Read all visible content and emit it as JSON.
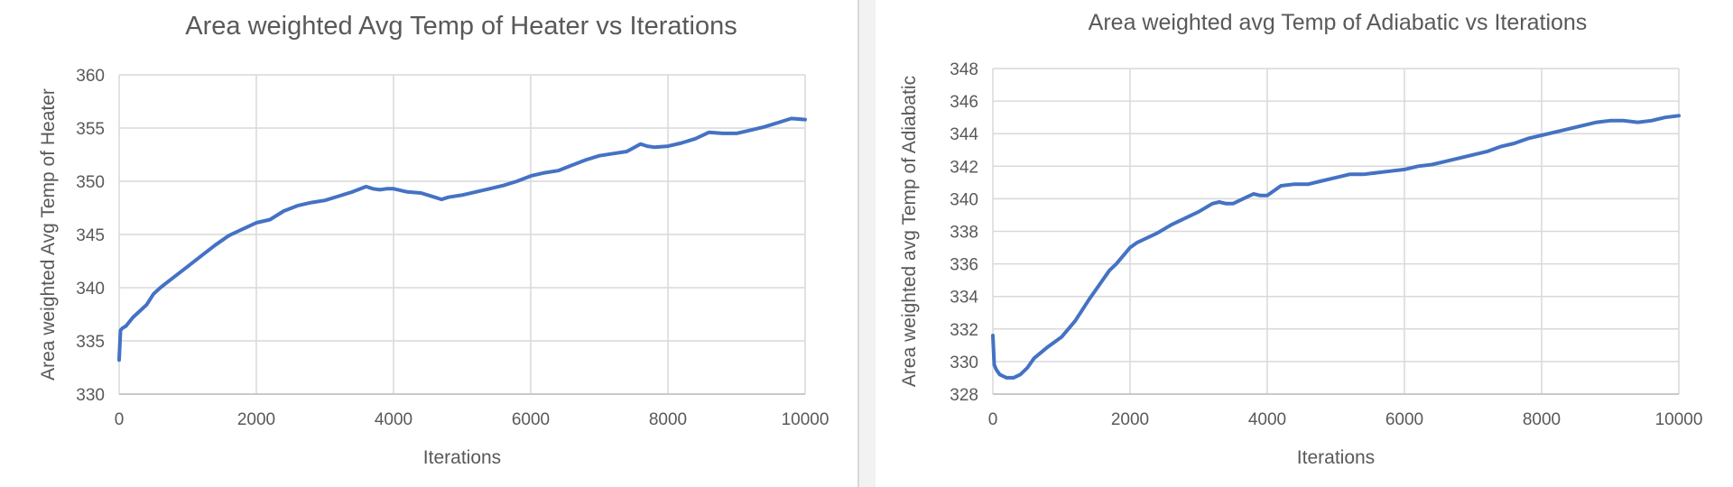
{
  "chart_data": [
    {
      "type": "line",
      "title": "Area weighted Avg Temp of Heater vs Iterations",
      "xlabel": "Iterations",
      "ylabel": "Area weighted Avg Temp of Heater",
      "xlim": [
        0,
        10000
      ],
      "ylim": [
        330,
        360
      ],
      "xticks": [
        0,
        2000,
        4000,
        6000,
        8000,
        10000
      ],
      "yticks": [
        330,
        335,
        340,
        345,
        350,
        355,
        360
      ],
      "grid": true,
      "legend": "none",
      "color": "#4472c4",
      "x": [
        0,
        20,
        50,
        100,
        200,
        300,
        400,
        500,
        600,
        700,
        800,
        900,
        1000,
        1200,
        1400,
        1600,
        1800,
        2000,
        2200,
        2400,
        2600,
        2800,
        3000,
        3200,
        3400,
        3600,
        3700,
        3800,
        3900,
        4000,
        4200,
        4400,
        4600,
        4700,
        4800,
        5000,
        5200,
        5400,
        5600,
        5800,
        6000,
        6200,
        6400,
        6600,
        6800,
        7000,
        7200,
        7400,
        7600,
        7700,
        7800,
        8000,
        8200,
        8400,
        8600,
        8800,
        9000,
        9200,
        9400,
        9600,
        9800,
        10000
      ],
      "y": [
        333.2,
        336.0,
        336.2,
        336.4,
        337.2,
        337.8,
        338.4,
        339.4,
        340.0,
        340.5,
        341.0,
        341.5,
        342.0,
        343.0,
        344.0,
        344.9,
        345.5,
        346.1,
        346.4,
        347.2,
        347.7,
        348.0,
        348.2,
        348.6,
        349.0,
        349.5,
        349.3,
        349.2,
        349.3,
        349.3,
        349.0,
        348.9,
        348.5,
        348.3,
        348.5,
        348.7,
        349.0,
        349.3,
        349.6,
        350.0,
        350.5,
        350.8,
        351.0,
        351.5,
        352.0,
        352.4,
        352.6,
        352.8,
        353.5,
        353.3,
        353.2,
        353.3,
        353.6,
        354.0,
        354.6,
        354.5,
        354.5,
        354.8,
        355.1,
        355.5,
        355.9,
        355.8
      ]
    },
    {
      "type": "line",
      "title": "Area weighted avg Temp of Adiabatic vs Iterations",
      "xlabel": "Iterations",
      "ylabel": "Area weighted avg Temp of Adiabatic",
      "xlim": [
        0,
        10000
      ],
      "ylim": [
        328,
        348
      ],
      "xticks": [
        0,
        2000,
        4000,
        6000,
        8000,
        10000
      ],
      "yticks": [
        328,
        330,
        332,
        334,
        336,
        338,
        340,
        342,
        344,
        346,
        348
      ],
      "grid": true,
      "legend": "none",
      "color": "#4472c4",
      "x": [
        0,
        20,
        50,
        100,
        200,
        300,
        400,
        500,
        600,
        800,
        1000,
        1200,
        1400,
        1600,
        1700,
        1800,
        1900,
        2000,
        2100,
        2200,
        2400,
        2600,
        2800,
        3000,
        3200,
        3300,
        3400,
        3500,
        3700,
        3800,
        3900,
        4000,
        4200,
        4400,
        4600,
        4800,
        5000,
        5200,
        5400,
        5600,
        5800,
        6000,
        6200,
        6400,
        6600,
        6800,
        7000,
        7200,
        7400,
        7600,
        7800,
        8000,
        8200,
        8400,
        8600,
        8800,
        9000,
        9200,
        9400,
        9600,
        9800,
        10000
      ],
      "y": [
        331.6,
        329.8,
        329.5,
        329.2,
        329.0,
        329.0,
        329.2,
        329.6,
        330.2,
        330.9,
        331.5,
        332.5,
        333.8,
        335.0,
        335.6,
        336.0,
        336.5,
        337.0,
        337.3,
        337.5,
        337.9,
        338.4,
        338.8,
        339.2,
        339.7,
        339.8,
        339.7,
        339.7,
        340.1,
        340.3,
        340.2,
        340.2,
        340.8,
        340.9,
        340.9,
        341.1,
        341.3,
        341.5,
        341.5,
        341.6,
        341.7,
        341.8,
        342.0,
        342.1,
        342.3,
        342.5,
        342.7,
        342.9,
        343.2,
        343.4,
        343.7,
        343.9,
        344.1,
        344.3,
        344.5,
        344.7,
        344.8,
        344.8,
        344.7,
        344.8,
        345.0,
        345.1
      ]
    }
  ]
}
